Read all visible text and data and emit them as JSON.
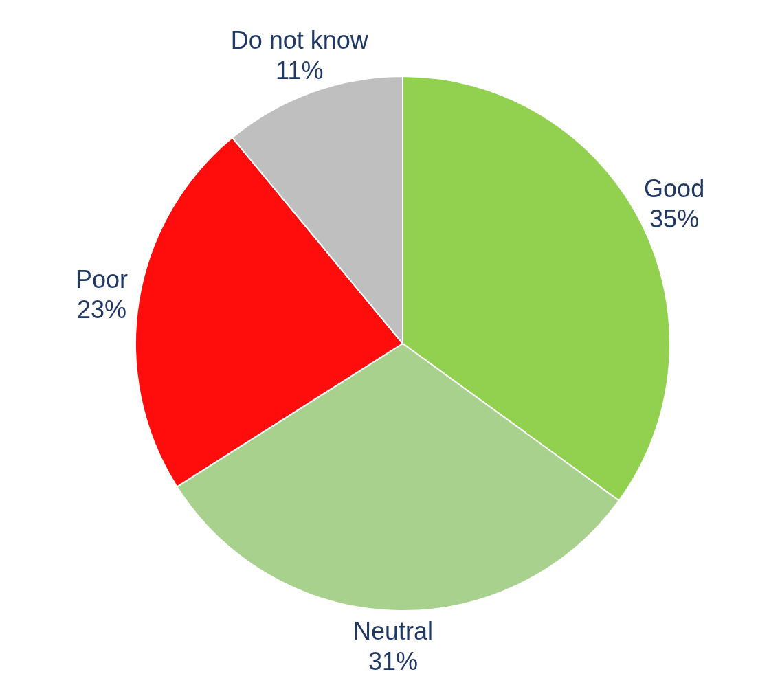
{
  "chart_data": {
    "type": "pie",
    "categories": [
      "Good",
      "Neutral",
      "Poor",
      "Do not know"
    ],
    "values": [
      35,
      31,
      23,
      11
    ],
    "colors": [
      "#92d050",
      "#a9d18e",
      "#ff0c0c",
      "#bfbfbf"
    ],
    "value_labels": [
      "35%",
      "31%",
      "23%",
      "11%"
    ],
    "legend": false
  }
}
